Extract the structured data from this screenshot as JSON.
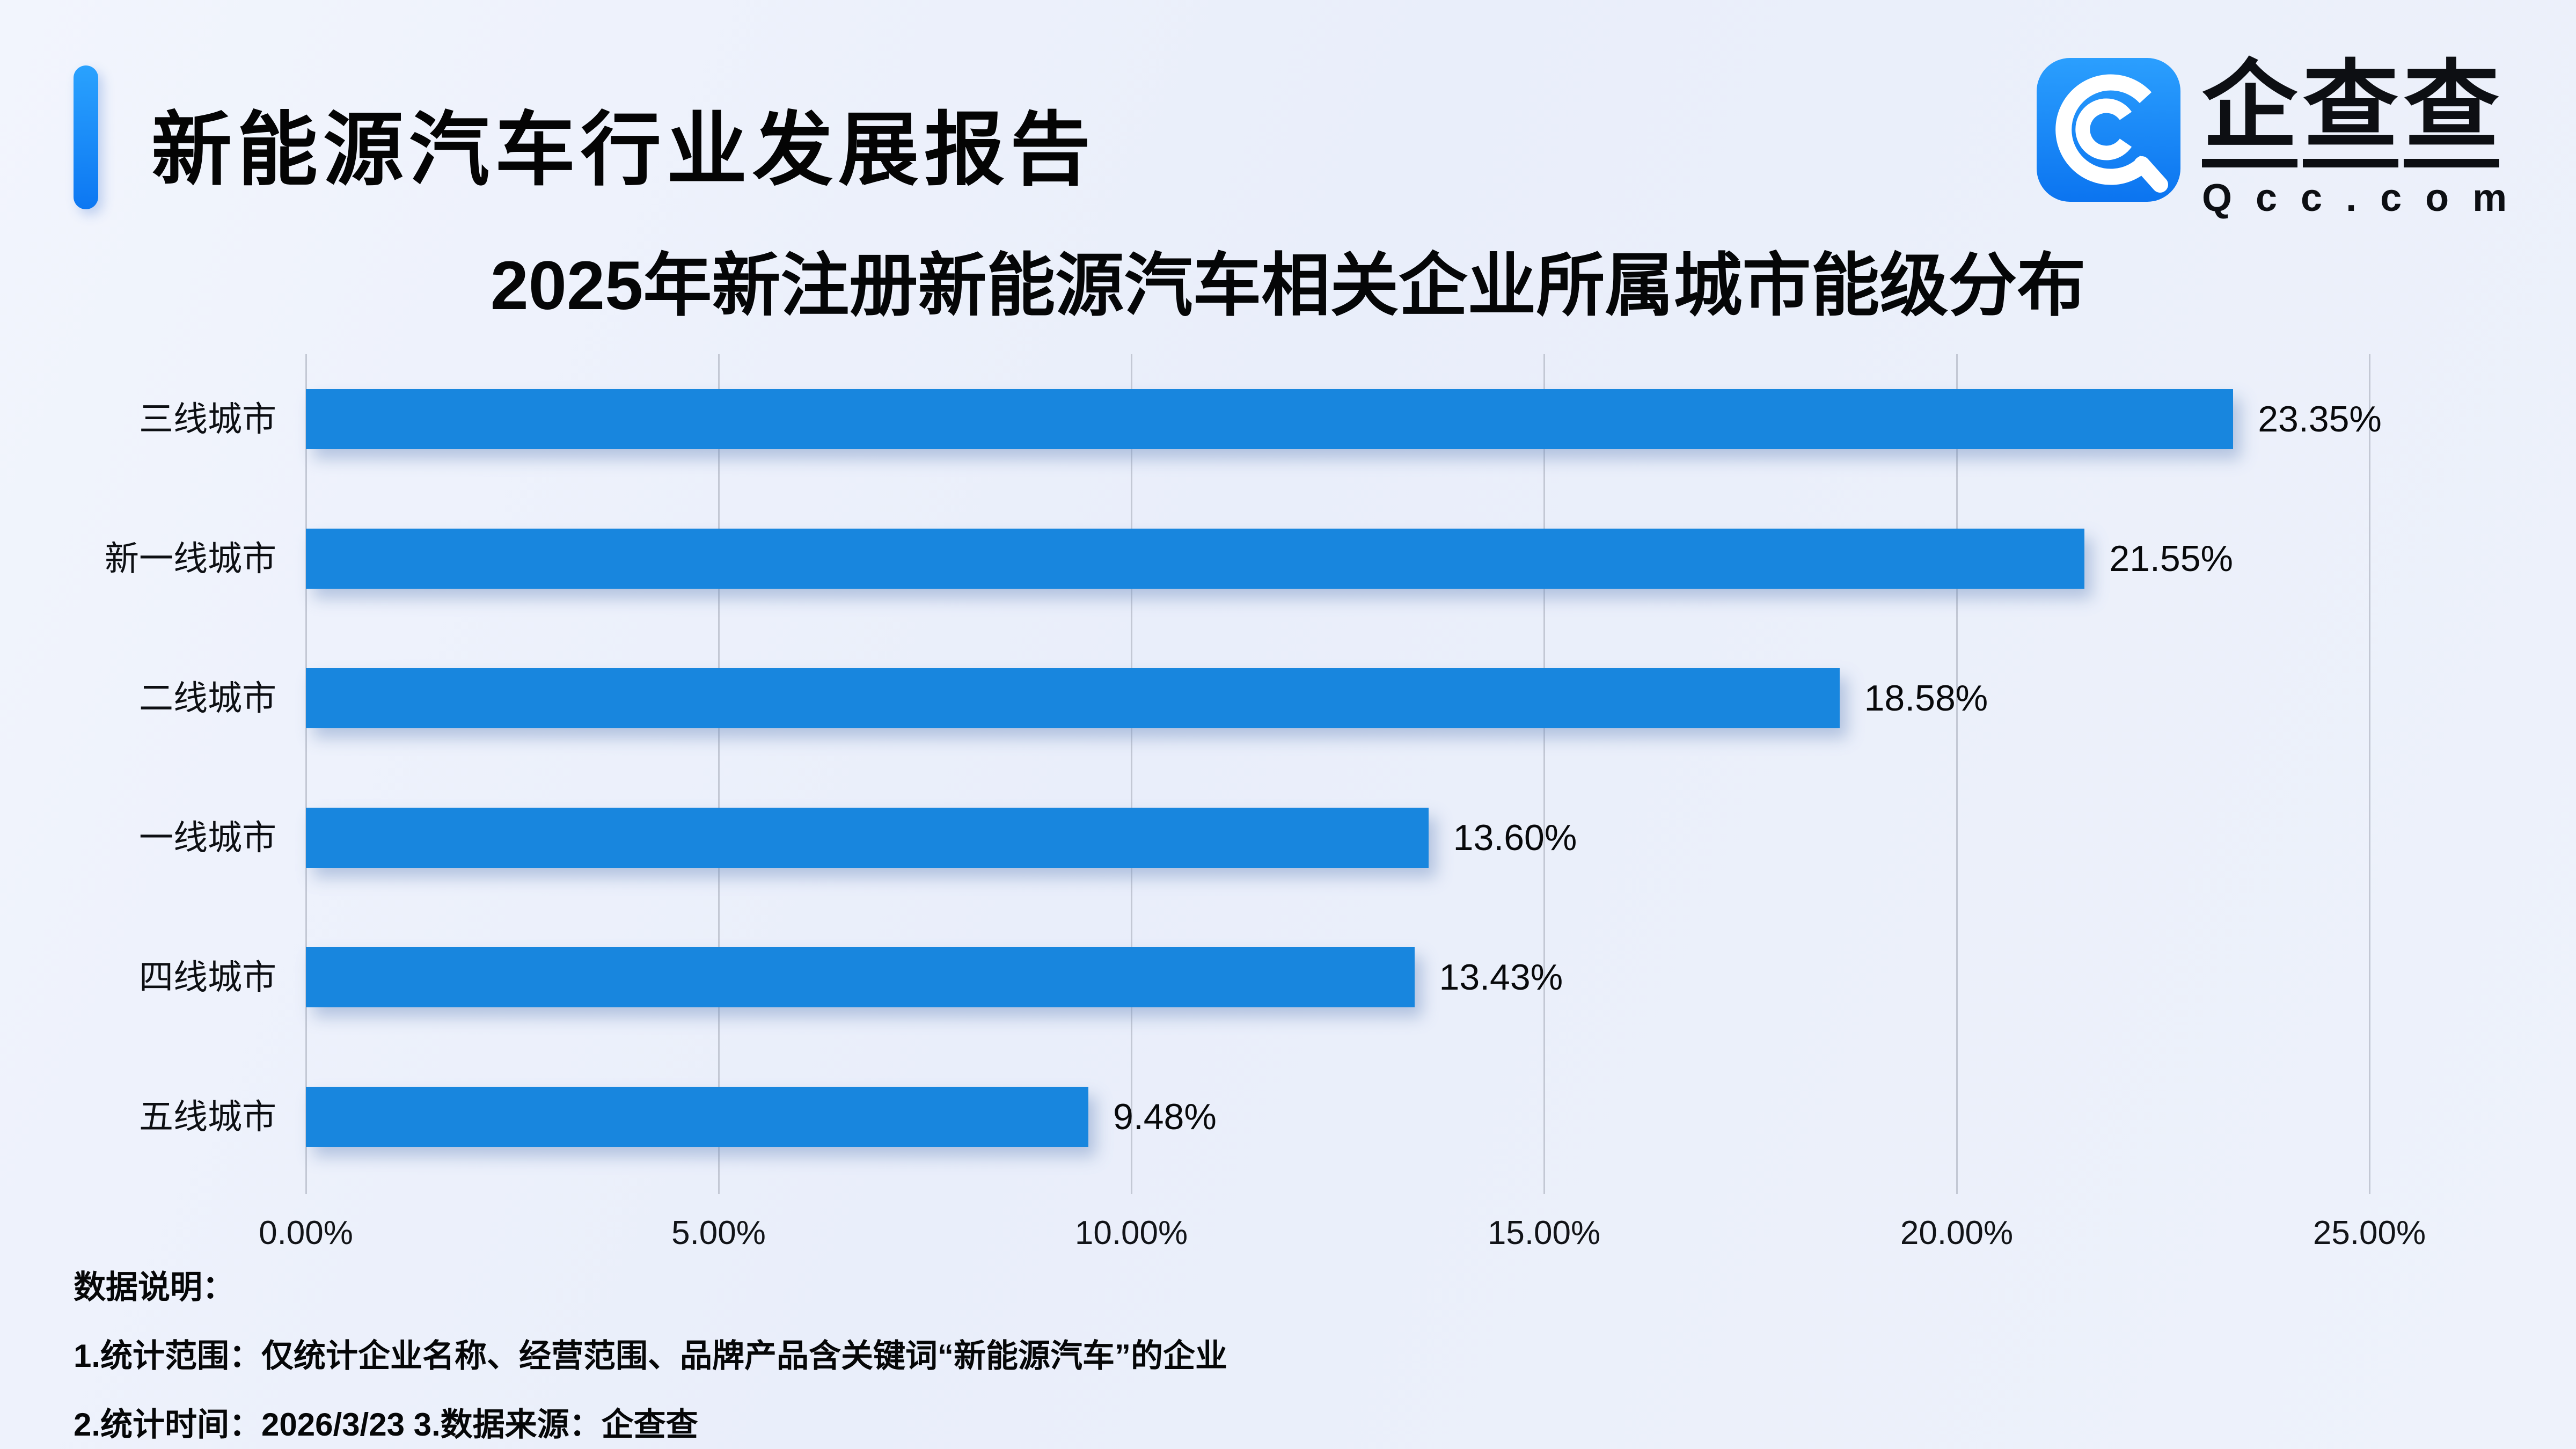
{
  "header": {
    "title": "新能源汽车行业发展报告",
    "logo": {
      "icon": "qcc-swirl-icon",
      "brand_chars": [
        "企",
        "查",
        "查"
      ],
      "domain": "Qcc.com"
    }
  },
  "chart_data": {
    "type": "bar",
    "orientation": "horizontal",
    "title": "2025年新注册新能源汽车相关企业所属城市能级分布",
    "categories": [
      "三线城市",
      "新一线城市",
      "二线城市",
      "一线城市",
      "四线城市",
      "五线城市"
    ],
    "values": [
      23.35,
      21.55,
      18.58,
      13.6,
      13.43,
      9.48
    ],
    "value_labels": [
      "23.35%",
      "21.55%",
      "18.58%",
      "13.60%",
      "13.43%",
      "9.48%"
    ],
    "x_ticks": [
      "0.00%",
      "5.00%",
      "10.00%",
      "15.00%",
      "20.00%",
      "25.00%"
    ],
    "x_tick_values": [
      0,
      5,
      10,
      15,
      20,
      25
    ],
    "xlim": [
      0,
      25
    ],
    "grid": true,
    "legend": "none",
    "ylabel": "",
    "xlabel": ""
  },
  "footnotes": {
    "heading": "数据说明：",
    "line1": "1.统计范围：仅统计企业名称、经营范围、品牌产品含关键词“新能源汽车”的企业",
    "line2": "2.统计时间：2026/3/23  3.数据来源：企查查"
  },
  "colors": {
    "bar": "#1886de",
    "accent_top": "#2aa2fe",
    "accent_bottom": "#0c77f2",
    "logo_top": "#2b9ffe",
    "logo_bottom": "#0b74f0",
    "grid": "#c3c8d4"
  }
}
